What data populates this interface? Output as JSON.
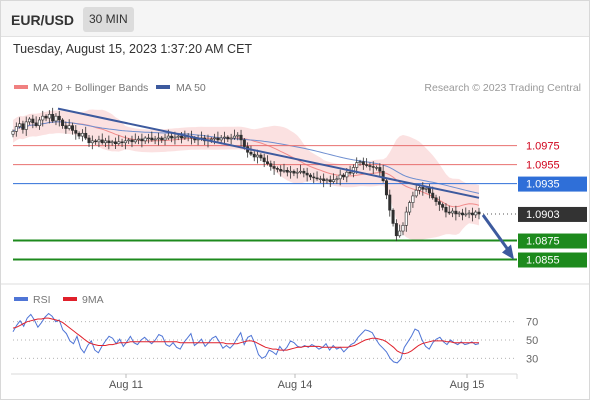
{
  "header": {
    "pair": "EUR/USD",
    "timeframe": "30 MIN",
    "datetime": "Tuesday, August 15, 2023 1:37:20 AM CET"
  },
  "legend": {
    "ma20_bollinger": "MA 20 + Bollinger Bands",
    "ma50": "MA 50",
    "copyright": "Research © 2023 Trading Central",
    "rsi": "RSI",
    "rsi_ma": "9MA"
  },
  "colors": {
    "bollinger_fill": "#fadcdc",
    "ma20": "#f08080",
    "ma50": "#6f8fd0",
    "trendline": "#3d5a9e",
    "resistance": "#e8706f",
    "resistance_text": "#d0021b",
    "pivot": "#2f6fd8",
    "support": "#1d8a1d",
    "last_price": "#333333",
    "rsi": "#4f75d6",
    "rsi_ma": "#e0202b",
    "candle": "#2f2f2f"
  },
  "chart_data": [
    {
      "type": "candlestick",
      "title": "EUR/USD 30 MIN",
      "x_ticks": [
        "Aug 11",
        "Aug 14",
        "Aug 15"
      ],
      "ylim": [
        1.0845,
        1.1022
      ],
      "levels": [
        {
          "label": "1.0975",
          "value": 1.0975,
          "kind": "resistance"
        },
        {
          "label": "1.0955",
          "value": 1.0955,
          "kind": "resistance"
        },
        {
          "label": "1.0935",
          "value": 1.0935,
          "kind": "pivot"
        },
        {
          "label": "1.0903",
          "value": 1.0903,
          "kind": "last"
        },
        {
          "label": "1.0875",
          "value": 1.0875,
          "kind": "support"
        },
        {
          "label": "1.0855",
          "value": 1.0855,
          "kind": "support"
        }
      ],
      "trendline": {
        "from": [
          "Aug 10 20:00",
          1.1014
        ],
        "to": [
          "Aug 15 00:30",
          1.092
        ]
      },
      "forecast_arrow": {
        "from": 1.0903,
        "to": 1.0855
      },
      "close": [
        1.099,
        1.0995,
        1.0998,
        1.0992,
        1.1,
        1.1003,
        1.0999,
        1.0996,
        1.1002,
        1.1006,
        1.1004,
        1.1008,
        1.1001,
        1.1006,
        1.1002,
        1.0996,
        1.0993,
        1.0996,
        1.0991,
        1.0988,
        1.0985,
        1.0988,
        1.0983,
        1.0978,
        1.098,
        1.0979,
        1.0981,
        1.0978,
        1.098,
        1.0978,
        1.0979,
        1.0977,
        1.0979,
        1.0978,
        1.098,
        1.0981,
        1.0979,
        1.0981,
        1.0982,
        1.098,
        1.0983,
        1.0983,
        1.0981,
        1.0982,
        1.0983,
        1.0981,
        1.0983,
        1.0985,
        1.0983,
        1.0984,
        1.0985,
        1.0983,
        1.0984,
        1.0985,
        1.0983,
        1.0981,
        1.0982,
        1.0983,
        1.098,
        1.0981,
        1.0982,
        1.0983,
        1.0981,
        1.0983,
        1.0984,
        1.0982,
        1.0983,
        1.0985,
        1.0986,
        1.0981,
        1.0974,
        1.0968,
        1.0966,
        1.0963,
        1.0965,
        1.0962,
        1.0958,
        1.0956,
        1.0953,
        1.0951,
        1.095,
        1.0948,
        1.0949,
        1.0947,
        1.0948,
        1.0946,
        1.0947,
        1.0948,
        1.0946,
        1.0944,
        1.0942,
        1.0941,
        1.094,
        1.094,
        1.0938,
        1.0939,
        1.0937,
        1.0939,
        1.094,
        1.0944,
        1.0942,
        1.0947,
        1.0946,
        1.0952,
        1.0957,
        1.0958,
        1.0955,
        1.0954,
        1.0953,
        1.0952,
        1.0952,
        1.0948,
        1.0938,
        1.0923,
        1.0907,
        1.0893,
        1.088,
        1.0885,
        1.0891,
        1.0905,
        1.0915,
        1.0922,
        1.0928,
        1.0931,
        1.0929,
        1.093,
        1.0925,
        1.092,
        1.0916,
        1.0913,
        1.091,
        1.0905,
        1.0904,
        1.0906,
        1.0903,
        1.0904,
        1.0902,
        1.0903,
        1.0904,
        1.0902,
        1.0905,
        1.0903
      ],
      "ma20_bollinger": "shown",
      "ma50": "shown",
      "grid": false,
      "legend": "top-left"
    },
    {
      "type": "line",
      "title": "RSI",
      "ylim": [
        15,
        85
      ],
      "y_ticks": [
        70,
        50,
        30
      ],
      "series": [
        {
          "name": "RSI",
          "values": [
            59,
            66,
            71,
            65,
            74,
            78,
            72,
            64,
            69,
            75,
            79,
            76,
            70,
            72,
            61,
            57,
            49,
            46,
            54,
            41,
            36,
            44,
            49,
            39,
            36,
            43,
            49,
            54,
            52,
            46,
            51,
            43,
            48,
            54,
            47,
            45,
            50,
            53,
            49,
            46,
            50,
            56,
            54,
            45,
            43,
            47,
            42,
            40,
            47,
            52,
            57,
            44,
            47,
            51,
            43,
            47,
            52,
            54,
            48,
            41,
            44,
            41,
            45,
            52,
            58,
            45,
            53,
            55,
            46,
            34,
            30,
            32,
            39,
            37,
            34,
            43,
            38,
            42,
            49,
            47,
            43,
            42,
            44,
            42,
            45,
            43,
            40,
            42,
            46,
            39,
            44,
            40,
            42,
            37,
            41,
            45,
            47,
            53,
            57,
            61,
            60,
            58,
            51,
            45,
            41,
            37,
            30,
            26,
            25,
            29,
            42,
            48,
            54,
            62,
            60,
            50,
            43,
            40,
            47,
            51,
            53,
            48,
            45,
            50,
            47,
            45,
            48,
            45,
            46,
            48,
            45,
            46
          ]
        },
        {
          "name": "9MA",
          "values": [
            63,
            64,
            66,
            68,
            70,
            71,
            72,
            73,
            73,
            74,
            74,
            73,
            72,
            71,
            69,
            66,
            63,
            60,
            57,
            54,
            51,
            48,
            46,
            45,
            44,
            44,
            44,
            45,
            45,
            46,
            47,
            47,
            47,
            48,
            48,
            48,
            48,
            48,
            48,
            48,
            48,
            48,
            48,
            48,
            48,
            48,
            48,
            47,
            47,
            47,
            47,
            47,
            47,
            47,
            47,
            47,
            47,
            47,
            47,
            47,
            46,
            46,
            46,
            46,
            47,
            48,
            49,
            49,
            48,
            46,
            44,
            42,
            41,
            40,
            40,
            39,
            39,
            39,
            40,
            41,
            42,
            42,
            43,
            43,
            43,
            43,
            43,
            42,
            42,
            42,
            42,
            42,
            42,
            42,
            42,
            43,
            44,
            46,
            48,
            50,
            51,
            52,
            52,
            51,
            50,
            48,
            45,
            42,
            38,
            36,
            35,
            36,
            38,
            41,
            44,
            46,
            47,
            48,
            49,
            49,
            49,
            49,
            48,
            48,
            47,
            47,
            47,
            47,
            47,
            47,
            47,
            47
          ]
        }
      ]
    }
  ]
}
